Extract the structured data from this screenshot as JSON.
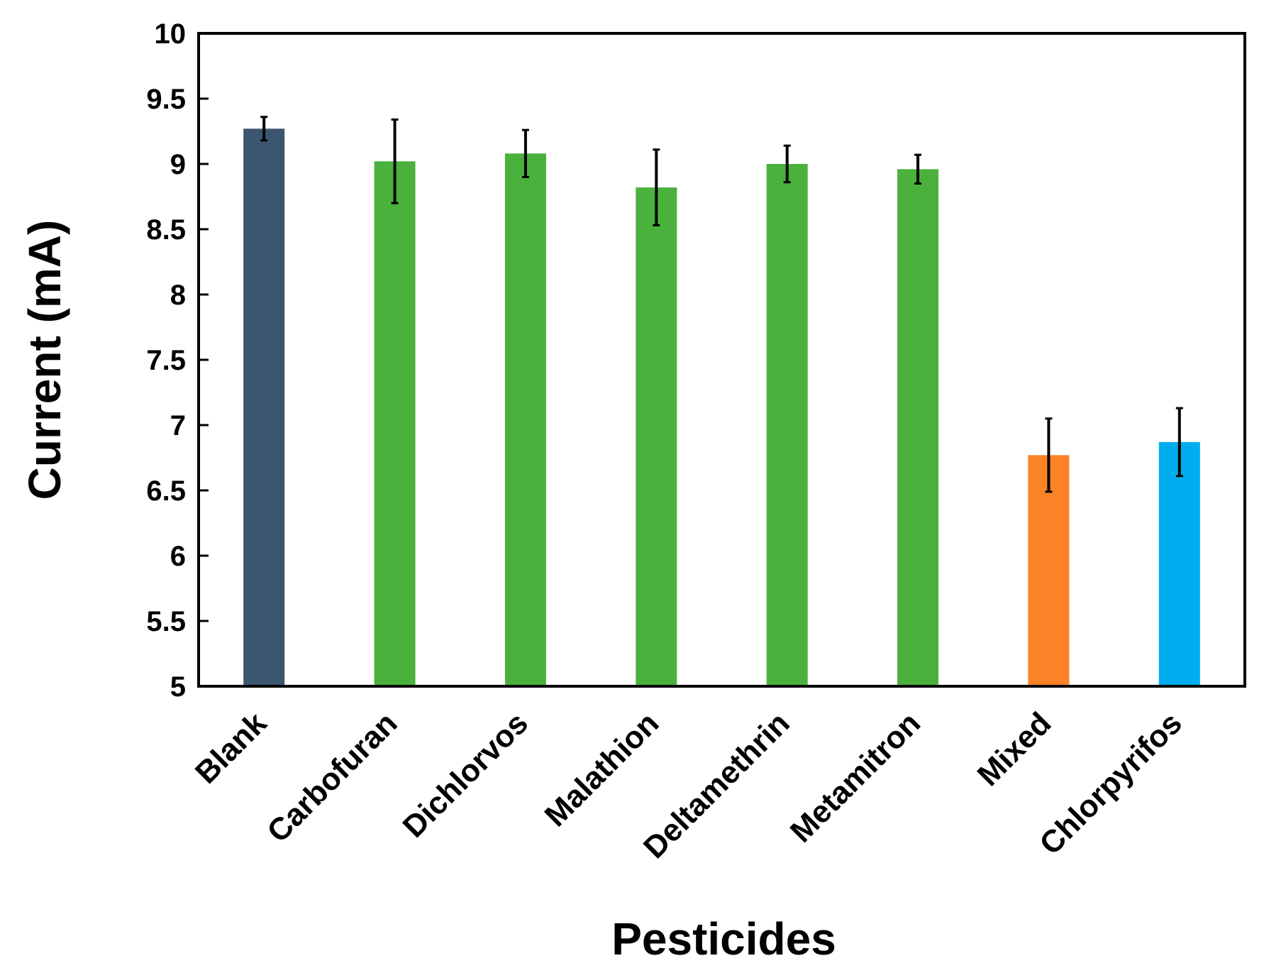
{
  "chart_data": {
    "type": "bar",
    "title": "",
    "xlabel": "Pesticides",
    "ylabel": "Current (mA)",
    "ylim": [
      5,
      10
    ],
    "yticks": [
      "5",
      "5.5",
      "6",
      "6.5",
      "7",
      "7.5",
      "8",
      "8.5",
      "9",
      "9.5",
      "10"
    ],
    "grid": false,
    "legend": "none",
    "categories": [
      "Blank",
      "Carbofuran",
      "Dichlorvos",
      "Malathion",
      "Deltamethrin",
      "Metamitron",
      "Mixed",
      "Chlorpyrifos"
    ],
    "values": [
      9.27,
      9.02,
      9.08,
      8.82,
      9.0,
      8.96,
      6.77,
      6.87
    ],
    "errors": [
      0.09,
      0.32,
      0.18,
      0.29,
      0.14,
      0.11,
      0.28,
      0.26
    ],
    "colors": [
      "#3d5670",
      "#4bb13d",
      "#4bb13d",
      "#4bb13d",
      "#4bb13d",
      "#4bb13d",
      "#fb8226",
      "#00aeef"
    ]
  }
}
